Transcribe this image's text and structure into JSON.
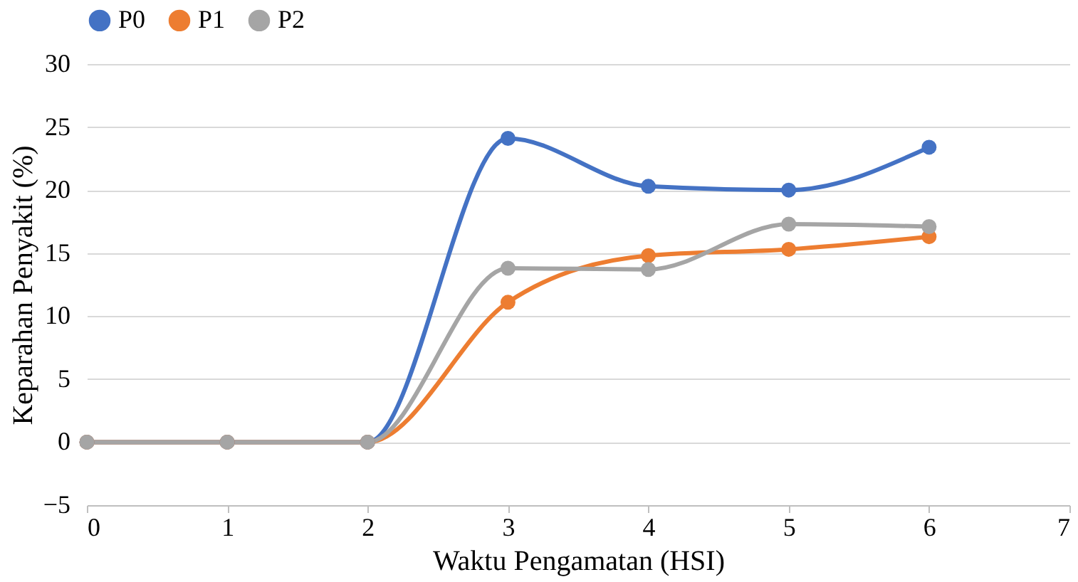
{
  "chart_data": {
    "type": "line",
    "xlabel": "Waktu Pengamatan (HSI)",
    "ylabel": "Keparahan Penyakit (%)",
    "x": [
      0,
      1,
      2,
      3,
      4,
      5,
      6
    ],
    "series": [
      {
        "name": "P0",
        "color": "#4472c4",
        "values": [
          0,
          0,
          0,
          24.1,
          20.3,
          20.0,
          23.4
        ]
      },
      {
        "name": "P1",
        "color": "#ed7d31",
        "values": [
          0,
          0,
          0,
          11.1,
          14.8,
          15.3,
          16.3
        ]
      },
      {
        "name": "P2",
        "color": "#a5a5a5",
        "values": [
          0,
          0,
          0,
          13.8,
          13.7,
          17.3,
          17.1
        ]
      }
    ],
    "xlim": [
      0,
      7
    ],
    "xticks": [
      0,
      1,
      2,
      3,
      4,
      5,
      6,
      7
    ],
    "ylim": [
      -5,
      30
    ],
    "yticks": [
      -5,
      0,
      5,
      10,
      15,
      20,
      25,
      30
    ],
    "grid": "y",
    "legend": "top",
    "marker": "circle",
    "line_style": "solid"
  }
}
